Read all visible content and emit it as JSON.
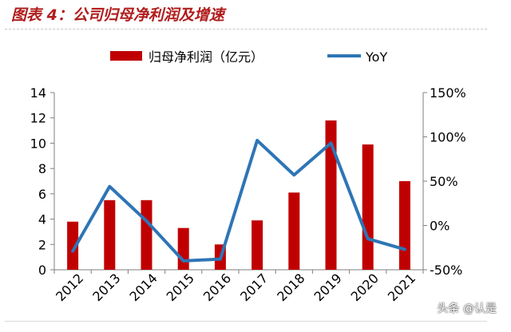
{
  "title": "图表 4：公司归母净利润及增速",
  "watermark": "头条 @认是",
  "colors": {
    "bar": "#c00000",
    "line": "#2e75b6",
    "title": "#b01c1c"
  },
  "chart_data": {
    "type": "bar",
    "categories": [
      "2012",
      "2013",
      "2014",
      "2015",
      "2016",
      "2017",
      "2018",
      "2019",
      "2020",
      "2021"
    ],
    "series": [
      {
        "name": "归母净利润（亿元）",
        "type": "bar",
        "axis": "left",
        "values": [
          3.8,
          5.5,
          5.5,
          3.3,
          2.0,
          3.9,
          6.1,
          11.8,
          9.9,
          7.0
        ]
      },
      {
        "name": "YoY",
        "type": "line",
        "axis": "right",
        "values": [
          -29,
          44,
          5,
          -40,
          -38,
          96,
          57,
          93,
          -15,
          -27
        ]
      }
    ],
    "y_left": {
      "min": 0,
      "max": 14,
      "ticks": [
        "0",
        "2",
        "4",
        "6",
        "8",
        "10",
        "12",
        "14"
      ]
    },
    "y_right": {
      "min": -50,
      "max": 150,
      "ticks": [
        "-50%",
        "0%",
        "50%",
        "100%",
        "150%"
      ]
    },
    "legend_position": "top",
    "grid": false
  }
}
